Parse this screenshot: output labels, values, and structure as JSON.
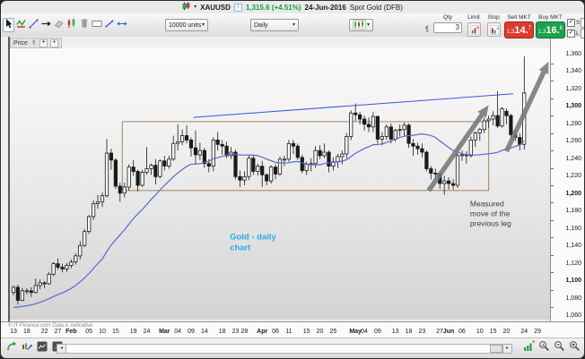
{
  "instrument_bar": {
    "symbol": "XAUUSD",
    "price": "1,315.6",
    "change": "(+4.51%)",
    "date": "24-Jun-2016",
    "name": "Spot Gold (DFB)"
  },
  "icons": {
    "caret": "▾",
    "check": "✓",
    "info": "i",
    "scroll_left": "◂",
    "scroll_right": "▸"
  },
  "toolbar": {
    "units_value": "10000 units",
    "timeframe_value": "Daily",
    "tools": [
      "pointer",
      "zigzag-pattern",
      "trendline",
      "horizontal-arrow-line",
      "eraser",
      "candle-pattern",
      "delete",
      "rectangle",
      "segment",
      "extend-line"
    ],
    "chart_type_button": "chart-style-selector"
  },
  "order_panel": {
    "qty_label": "Qty",
    "qty_value": "3",
    "limit_label": "Limit",
    "stop_label": "Stop",
    "sell_label": "Sell MKT",
    "buy_label": "Buy MKT",
    "sell_price": {
      "prefix": "1,3",
      "main": "14.",
      "sup": "7"
    },
    "buy_price": {
      "prefix": "1,3",
      "main": "16.",
      "sup": "8"
    },
    "short_label": "S",
    "short_value": "20",
    "long_label": "L",
    "long_value": "20"
  },
  "price_pane_label": "Price",
  "footer": {
    "copyright": "© IT-Finance.com",
    "note": "Data is indicative"
  },
  "bottom_bar_icons": [
    "share-chart",
    "compare-instrument",
    "indicators",
    "orders-on-chart",
    "histogram-volume",
    "zoom-reset",
    "zoom-out",
    "zoom-in"
  ],
  "chart_data": {
    "type": "candlestick",
    "title": "XAUUSD Daily - Spot Gold (DFB)",
    "last_price": 1315.6,
    "change_pct": 4.51,
    "grid": false,
    "y_axis": {
      "min": 1060,
      "max": 1360,
      "step": 20,
      "bold": [
        1100,
        1200,
        1300
      ],
      "tick_labels": [
        "1,060",
        "1,080",
        "1,100",
        "1,120",
        "1,140",
        "1,160",
        "1,180",
        "1,200",
        "1,220",
        "1,240",
        "1,260",
        "1,280",
        "1,300",
        "1,320",
        "1,340",
        "1,360"
      ]
    },
    "x_ticks": [
      {
        "label": "13",
        "i": 0
      },
      {
        "label": "18",
        "i": 3
      },
      {
        "label": "22",
        "i": 7
      },
      {
        "label": "27",
        "i": 10
      },
      {
        "label": "Feb",
        "i": 13,
        "bold": true
      },
      {
        "label": "05",
        "i": 17
      },
      {
        "label": "10",
        "i": 20
      },
      {
        "label": "15",
        "i": 23
      },
      {
        "label": "19",
        "i": 27
      },
      {
        "label": "24",
        "i": 30
      },
      {
        "label": "Mar",
        "i": 34,
        "bold": true
      },
      {
        "label": "04",
        "i": 37
      },
      {
        "label": "09",
        "i": 40
      },
      {
        "label": "14",
        "i": 43
      },
      {
        "label": "18",
        "i": 47
      },
      {
        "label": "23",
        "i": 50
      },
      {
        "label": "28",
        "i": 52
      },
      {
        "label": "Apr",
        "i": 56,
        "bold": true
      },
      {
        "label": "06",
        "i": 59
      },
      {
        "label": "11",
        "i": 62
      },
      {
        "label": "15",
        "i": 66
      },
      {
        "label": "20",
        "i": 69
      },
      {
        "label": "25",
        "i": 72
      },
      {
        "label": "May",
        "i": 77,
        "bold": true
      },
      {
        "label": "04",
        "i": 79
      },
      {
        "label": "09",
        "i": 82
      },
      {
        "label": "13",
        "i": 86
      },
      {
        "label": "18",
        "i": 89
      },
      {
        "label": "23",
        "i": 92
      },
      {
        "label": "27",
        "i": 96
      },
      {
        "label": "Jun",
        "i": 98,
        "bold": true
      },
      {
        "label": "06",
        "i": 101
      },
      {
        "label": "10",
        "i": 105
      },
      {
        "label": "15",
        "i": 108
      },
      {
        "label": "20",
        "i": 111
      },
      {
        "label": "24",
        "i": 115
      },
      {
        "label": "29",
        "i": 118
      }
    ],
    "candles": [
      [
        1087,
        1095,
        1084,
        1093
      ],
      [
        1093,
        1096,
        1073,
        1078
      ],
      [
        1078,
        1092,
        1077,
        1089
      ],
      [
        1089,
        1092,
        1085,
        1089
      ],
      [
        1089,
        1093,
        1082,
        1087
      ],
      [
        1087,
        1103,
        1086,
        1095
      ],
      [
        1095,
        1102,
        1091,
        1098
      ],
      [
        1098,
        1100,
        1092,
        1097
      ],
      [
        1097,
        1110,
        1096,
        1108
      ],
      [
        1108,
        1122,
        1106,
        1120
      ],
      [
        1120,
        1126,
        1113,
        1116
      ],
      [
        1116,
        1120,
        1110,
        1114
      ],
      [
        1114,
        1121,
        1111,
        1118
      ],
      [
        1118,
        1125,
        1115,
        1122
      ],
      [
        1122,
        1132,
        1119,
        1129
      ],
      [
        1129,
        1146,
        1125,
        1141
      ],
      [
        1141,
        1160,
        1139,
        1157
      ],
      [
        1157,
        1176,
        1154,
        1174
      ],
      [
        1174,
        1193,
        1170,
        1189
      ],
      [
        1189,
        1199,
        1183,
        1191
      ],
      [
        1191,
        1202,
        1185,
        1198
      ],
      [
        1198,
        1263,
        1196,
        1247
      ],
      [
        1247,
        1252,
        1228,
        1239
      ],
      [
        1239,
        1241,
        1206,
        1209
      ],
      [
        1209,
        1213,
        1191,
        1201
      ],
      [
        1201,
        1213,
        1196,
        1208
      ],
      [
        1208,
        1234,
        1204,
        1231
      ],
      [
        1231,
        1239,
        1221,
        1226
      ],
      [
        1226,
        1228,
        1203,
        1210
      ],
      [
        1210,
        1228,
        1208,
        1225
      ],
      [
        1225,
        1254,
        1222,
        1229
      ],
      [
        1229,
        1235,
        1222,
        1233
      ],
      [
        1233,
        1240,
        1211,
        1220
      ],
      [
        1220,
        1240,
        1218,
        1238
      ],
      [
        1238,
        1244,
        1227,
        1232
      ],
      [
        1232,
        1244,
        1229,
        1240
      ],
      [
        1240,
        1267,
        1238,
        1258
      ],
      [
        1258,
        1280,
        1250,
        1260
      ],
      [
        1260,
        1274,
        1256,
        1267
      ],
      [
        1267,
        1279,
        1258,
        1262
      ],
      [
        1262,
        1265,
        1243,
        1253
      ],
      [
        1253,
        1273,
        1235,
        1245
      ],
      [
        1245,
        1259,
        1239,
        1250
      ],
      [
        1250,
        1253,
        1230,
        1235
      ],
      [
        1235,
        1240,
        1225,
        1232
      ],
      [
        1232,
        1265,
        1226,
        1262
      ],
      [
        1262,
        1271,
        1250,
        1257
      ],
      [
        1257,
        1262,
        1245,
        1255
      ],
      [
        1255,
        1260,
        1241,
        1244
      ],
      [
        1244,
        1254,
        1240,
        1248
      ],
      [
        1248,
        1251,
        1217,
        1220
      ],
      [
        1220,
        1227,
        1208,
        1216
      ],
      [
        1216,
        1226,
        1210,
        1220
      ],
      [
        1220,
        1244,
        1216,
        1241
      ],
      [
        1241,
        1245,
        1222,
        1226
      ],
      [
        1226,
        1235,
        1221,
        1232
      ],
      [
        1232,
        1238,
        1208,
        1222
      ],
      [
        1222,
        1224,
        1210,
        1215
      ],
      [
        1215,
        1233,
        1212,
        1231
      ],
      [
        1231,
        1234,
        1217,
        1223
      ],
      [
        1223,
        1243,
        1221,
        1240
      ],
      [
        1240,
        1244,
        1232,
        1240
      ],
      [
        1240,
        1262,
        1237,
        1258
      ],
      [
        1258,
        1262,
        1246,
        1255
      ],
      [
        1255,
        1258,
        1239,
        1242
      ],
      [
        1242,
        1245,
        1224,
        1227
      ],
      [
        1227,
        1237,
        1222,
        1234
      ],
      [
        1234,
        1241,
        1226,
        1235
      ],
      [
        1235,
        1255,
        1230,
        1250
      ],
      [
        1250,
        1256,
        1240,
        1244
      ],
      [
        1244,
        1258,
        1241,
        1248
      ],
      [
        1248,
        1250,
        1225,
        1232
      ],
      [
        1232,
        1242,
        1227,
        1237
      ],
      [
        1237,
        1246,
        1230,
        1243
      ],
      [
        1243,
        1250,
        1234,
        1246
      ],
      [
        1246,
        1270,
        1241,
        1266
      ],
      [
        1266,
        1296,
        1262,
        1293
      ],
      [
        1293,
        1304,
        1284,
        1291
      ],
      [
        1291,
        1294,
        1280,
        1286
      ],
      [
        1286,
        1290,
        1273,
        1280
      ],
      [
        1280,
        1288,
        1271,
        1277
      ],
      [
        1277,
        1294,
        1271,
        1289
      ],
      [
        1289,
        1290,
        1258,
        1263
      ],
      [
        1263,
        1271,
        1256,
        1266
      ],
      [
        1266,
        1280,
        1262,
        1277
      ],
      [
        1277,
        1281,
        1258,
        1263
      ],
      [
        1263,
        1275,
        1260,
        1273
      ],
      [
        1273,
        1280,
        1266,
        1274
      ],
      [
        1274,
        1282,
        1266,
        1279
      ],
      [
        1279,
        1281,
        1253,
        1258
      ],
      [
        1258,
        1263,
        1244,
        1255
      ],
      [
        1255,
        1259,
        1245,
        1252
      ],
      [
        1252,
        1258,
        1242,
        1248
      ],
      [
        1248,
        1250,
        1226,
        1229
      ],
      [
        1229,
        1232,
        1217,
        1224
      ],
      [
        1224,
        1229,
        1217,
        1223
      ],
      [
        1223,
        1225,
        1206,
        1212
      ],
      [
        1212,
        1221,
        1199,
        1215
      ],
      [
        1215,
        1219,
        1205,
        1212
      ],
      [
        1212,
        1217,
        1205,
        1210
      ],
      [
        1210,
        1248,
        1207,
        1244
      ],
      [
        1244,
        1250,
        1238,
        1245
      ],
      [
        1245,
        1249,
        1235,
        1244
      ],
      [
        1244,
        1266,
        1242,
        1262
      ],
      [
        1262,
        1272,
        1254,
        1270
      ],
      [
        1270,
        1276,
        1261,
        1274
      ],
      [
        1274,
        1288,
        1270,
        1284
      ],
      [
        1284,
        1290,
        1276,
        1286
      ],
      [
        1286,
        1295,
        1279,
        1290
      ],
      [
        1290,
        1318,
        1276,
        1278
      ],
      [
        1278,
        1300,
        1276,
        1298
      ],
      [
        1295,
        1298,
        1280,
        1290
      ],
      [
        1290,
        1292,
        1264,
        1268
      ],
      [
        1268,
        1274,
        1261,
        1265
      ],
      [
        1265,
        1270,
        1250,
        1257
      ],
      [
        1257,
        1358,
        1251,
        1316
      ]
    ],
    "ma": {
      "period": 20,
      "color": "#5868cf",
      "seed": [
        1068,
        1073,
        1075,
        1071,
        1066,
        1063,
        1060,
        1064,
        1069,
        1072,
        1075,
        1070,
        1066,
        1062,
        1061,
        1066,
        1071,
        1074,
        1077
      ]
    },
    "trendline": {
      "from_index": 40.5,
      "from_price": 1288,
      "to_index": 112.5,
      "to_price": 1315,
      "color": "#3a57d6"
    },
    "rectangle": {
      "from_index": 24.5,
      "to_index": 107,
      "top_price": 1283,
      "bottom_price": 1204,
      "color": "#a8835d"
    },
    "arrows": [
      {
        "from_index": 93.5,
        "from_price": 1204,
        "to_index": 107,
        "to_price": 1302
      },
      {
        "from_index": 111,
        "from_price": 1249,
        "to_index": 120.5,
        "to_price": 1352
      }
    ],
    "arrow_color": "#787878",
    "annotations": [
      {
        "lines": [
          "Gold - daily",
          "chart"
        ],
        "index": 48.7,
        "price": 1148,
        "color": "#29abe2",
        "bold": true,
        "size": 9.5
      },
      {
        "lines": [
          "Measured",
          "move of the",
          "previous leg"
        ],
        "index": 102.8,
        "price": 1186,
        "color": "#3c3c3c",
        "bold": false,
        "size": 8.5
      }
    ]
  }
}
